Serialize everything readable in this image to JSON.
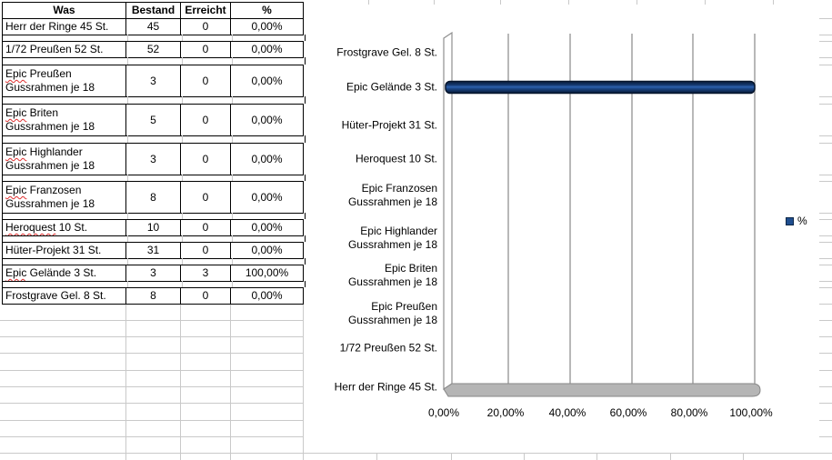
{
  "table": {
    "headers": [
      "Was",
      "Bestand",
      "Erreicht",
      "%"
    ],
    "rows": [
      {
        "lines": [
          "Herr der Ringe 45 St."
        ],
        "misspelled": "",
        "bestand": "45",
        "erreicht": "0",
        "prozent": "0,00%"
      },
      {
        "lines": [
          "1/72 Preußen 52 St."
        ],
        "misspelled": "",
        "bestand": "52",
        "erreicht": "0",
        "prozent": "0,00%"
      },
      {
        "lines": [
          "Epic Preußen",
          "Gussrahmen je 18"
        ],
        "misspelled": "Epic",
        "bestand": "3",
        "erreicht": "0",
        "prozent": "0,00%"
      },
      {
        "lines": [
          "Epic Briten",
          "Gussrahmen je 18"
        ],
        "misspelled": "Epic",
        "bestand": "5",
        "erreicht": "0",
        "prozent": "0,00%"
      },
      {
        "lines": [
          "Epic Highlander",
          "Gussrahmen je 18"
        ],
        "misspelled": "Epic",
        "bestand": "3",
        "erreicht": "0",
        "prozent": "0,00%"
      },
      {
        "lines": [
          "Epic Franzosen",
          "Gussrahmen je 18"
        ],
        "misspelled": "Epic",
        "bestand": "8",
        "erreicht": "0",
        "prozent": "0,00%"
      },
      {
        "lines": [
          "Heroquest 10 St."
        ],
        "misspelled": "Heroquest",
        "bestand": "10",
        "erreicht": "0",
        "prozent": "0,00%"
      },
      {
        "lines": [
          "Hüter-Projekt 31 St."
        ],
        "misspelled": "",
        "bestand": "31",
        "erreicht": "0",
        "prozent": "0,00%"
      },
      {
        "lines": [
          "Epic Gelände 3 St."
        ],
        "misspelled": "Epic",
        "bestand": "3",
        "erreicht": "3",
        "prozent": "100,00%"
      },
      {
        "lines": [
          "Frostgrave Gel. 8 St."
        ],
        "misspelled": "",
        "bestand": "8",
        "erreicht": "0",
        "prozent": "0,00%"
      }
    ]
  },
  "chart_data": {
    "type": "bar",
    "orientation": "horizontal",
    "title": "",
    "xlabel": "",
    "ylabel": "",
    "xlim_pct": [
      0,
      100
    ],
    "grid": true,
    "legend_position": "right",
    "legend_label": "%",
    "bar_color": "#1f4e8f",
    "x_tick_labels": [
      "0,00%",
      "20,00%",
      "40,00%",
      "60,00%",
      "80,00%",
      "100,00%"
    ],
    "categories_top_to_bottom": [
      {
        "lines": [
          "Frostgrave Gel. 8 St."
        ],
        "value_pct": 0
      },
      {
        "lines": [
          "Epic Gelände 3 St."
        ],
        "value_pct": 100
      },
      {
        "lines": [
          "Hüter-Projekt 31 St."
        ],
        "value_pct": 0
      },
      {
        "lines": [
          "Heroquest 10 St."
        ],
        "value_pct": 0
      },
      {
        "lines": [
          "Epic Franzosen",
          "Gussrahmen je 18"
        ],
        "value_pct": 0
      },
      {
        "lines": [
          "Epic Highlander",
          "Gussrahmen je 18"
        ],
        "value_pct": 0
      },
      {
        "lines": [
          "Epic Briten",
          "Gussrahmen je 18"
        ],
        "value_pct": 0
      },
      {
        "lines": [
          "Epic Preußen",
          "Gussrahmen je 18"
        ],
        "value_pct": 0
      },
      {
        "lines": [
          "1/72 Preußen 52 St."
        ],
        "value_pct": 0
      },
      {
        "lines": [
          "Herr der Ringe 45 St."
        ],
        "value_pct": 0
      }
    ]
  }
}
